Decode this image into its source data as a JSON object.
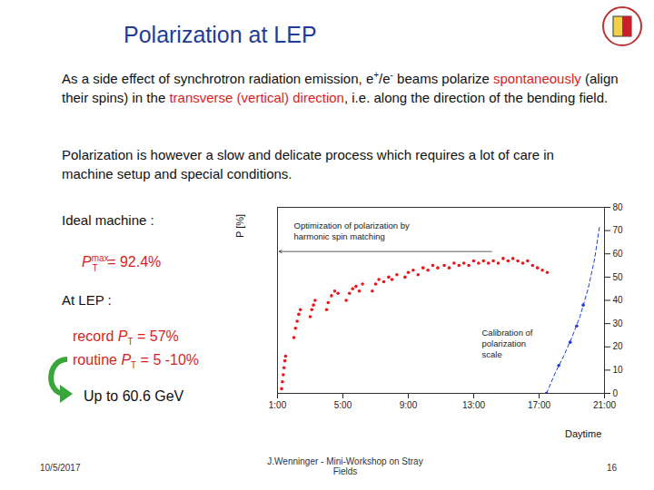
{
  "slide": {
    "title": "Polarization at LEP",
    "paragraphs": [
      [
        {
          "text": "As a side effect of synchrotron radiation emission, e"
        },
        {
          "text": "+",
          "style": "sup"
        },
        {
          "text": "/e"
        },
        {
          "text": "-",
          "style": "sup"
        },
        {
          "text": " beams polarize "
        },
        {
          "text": "spontaneously",
          "style": "red"
        },
        {
          "text": " (align their spins) in the "
        },
        {
          "text": "transverse (vertical) direction",
          "style": "red"
        },
        {
          "text": ", i.e. along the direction of the bending field."
        }
      ],
      [
        {
          "text": "Polarization is however a slow and delicate process which requires a  lot of care in machine setup and special conditions."
        }
      ]
    ],
    "ideal_heading": "Ideal machine :",
    "ideal_value": {
      "symbol": "P",
      "sub": "T",
      "sup": "max",
      "text": " = 92.4%"
    },
    "lep_heading": "At LEP :",
    "lep_values": [
      {
        "prefix": "record ",
        "symbol": "P",
        "sub": "T",
        "text": " = 57%"
      },
      {
        "prefix": "routine ",
        "symbol": "P",
        "sub": "T",
        "text": " = 5 -10%"
      }
    ],
    "energy_note": "Up to 60.6 GeV",
    "footer": {
      "date": "10/5/2017",
      "center": "J.Wenninger - Mini-Workshop on Stray Fields",
      "page": "16"
    }
  },
  "chart_data": {
    "type": "scatter",
    "xlabel": "Daytime",
    "ylabel": "P [%]",
    "xlim": [
      1,
      21
    ],
    "ylim": [
      0,
      80
    ],
    "xticks": [
      {
        "value": 1,
        "label": "1:00"
      },
      {
        "value": 5,
        "label": "5:00"
      },
      {
        "value": 9,
        "label": "9:00"
      },
      {
        "value": 13,
        "label": "13:00"
      },
      {
        "value": 17,
        "label": "17:00"
      },
      {
        "value": 21,
        "label": "21:00"
      }
    ],
    "yticks": [
      0,
      10,
      20,
      30,
      40,
      50,
      60,
      70,
      80
    ],
    "series": [
      {
        "color": "#e8161b",
        "marker": "circle",
        "x": [
          1.25,
          1.3,
          1.35,
          1.4,
          1.45,
          1.5,
          2.0,
          2.1,
          2.2,
          2.3,
          2.4,
          3.0,
          3.1,
          3.2,
          3.3,
          4.0,
          4.1,
          4.3,
          4.5,
          4.7,
          5.2,
          5.4,
          5.6,
          5.8,
          6.0,
          6.2,
          6.8,
          7.0,
          7.2,
          7.5,
          7.8,
          8.0,
          8.3,
          8.8,
          9.0,
          9.3,
          9.6,
          9.9,
          10.2,
          10.5,
          10.8,
          11.2,
          11.5,
          11.8,
          12.1,
          12.4,
          12.7,
          13.0,
          13.3,
          13.6,
          13.9,
          14.2,
          14.5,
          14.8,
          15.1,
          15.4,
          15.7,
          16.0,
          16.3,
          16.6,
          16.9,
          17.2,
          17.5
        ],
        "values": [
          2,
          5,
          8,
          11,
          14,
          16,
          24,
          28,
          31,
          34,
          36,
          33,
          36,
          38,
          40,
          36,
          39,
          42,
          44,
          43,
          40,
          43,
          45,
          46,
          44,
          47,
          44,
          47,
          49,
          48,
          50,
          49,
          51,
          50,
          52,
          53,
          51,
          54,
          53,
          55,
          54,
          55,
          54,
          56,
          55,
          56,
          55,
          57,
          56,
          57,
          56,
          57,
          56,
          58,
          57,
          58,
          57,
          56,
          57,
          55,
          54,
          53,
          52
        ]
      },
      {
        "color": "#1f3fd0",
        "marker": "circle",
        "x": [
          17.45,
          18.2,
          18.9,
          19.3,
          19.7
        ],
        "values": [
          0,
          12,
          22,
          29,
          38
        ]
      },
      {
        "type": "line",
        "color": "#1f3fd0",
        "line_style": "dashed",
        "marker": "none",
        "x": [
          17.45,
          18.0,
          18.5,
          19.0,
          19.5,
          20.0,
          20.4,
          20.7
        ],
        "values": [
          0,
          9,
          16,
          24,
          33,
          45,
          58,
          72
        ]
      }
    ],
    "annotations": [
      {
        "lines": [
          "Optimization of polarization by",
          "harmonic spin matching"
        ],
        "x": 2.0,
        "y": 74,
        "arrow": {
          "x1": 1.1,
          "x2": 14.1,
          "y": 61
        }
      },
      {
        "lines": [
          "Calibration of",
          "polarization",
          "scale"
        ],
        "x": 13.5,
        "y": 28
      }
    ]
  }
}
